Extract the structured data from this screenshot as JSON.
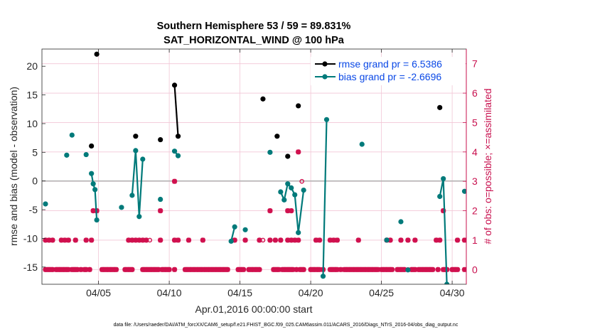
{
  "chart_data": {
    "type": "line",
    "title": "Southern Hemisphere 53 / 59 = 89.831%",
    "subtitle": "SAT_HORIZONTAL_WIND @ 100 hPa",
    "xlabel": "Apr.01,2016 00:00:00 start",
    "ylabel": "rmse and bias (model - observation)",
    "y2label": "# of obs: o=possible; ×=assimilated",
    "footer": "data file: /Users/raeder/DAI/ATM_forcXX/CAM6_setup/f.e21.FHIST_BGC.f09_025.CAM6assim.011/ACARS_2016/Diags_NTrS_2016-04/obs_diag_output.nc",
    "xlim": [
      1.0,
      31.0
    ],
    "ylim": [
      -18,
      23
    ],
    "y2lim": [
      -0.5,
      7.5
    ],
    "xticks": [
      5,
      10,
      15,
      20,
      25,
      30
    ],
    "xtick_labels": [
      "04/05",
      "04/10",
      "04/15",
      "04/20",
      "04/25",
      "04/30"
    ],
    "yticks": [
      -15,
      -10,
      -5,
      0,
      5,
      10,
      15,
      20
    ],
    "y2ticks": [
      0,
      1,
      2,
      3,
      4,
      5,
      6,
      7
    ],
    "grid": true,
    "legend_position": "top-right",
    "colors": {
      "rmse": "#000000",
      "bias": "#007a7a",
      "obs": "#d0104e",
      "zero": "#b4b4b4",
      "grid": "#f2c6d6"
    },
    "series": [
      {
        "name": "rmse grand pr = 6.5386",
        "points": [
          [
            4.5,
            6.1
          ],
          [
            4.875,
            22.1
          ],
          [
            7.625,
            7.8
          ],
          [
            9.375,
            7.2
          ],
          [
            10.375,
            16.7
          ],
          [
            10.625,
            7.8
          ],
          [
            16.625,
            14.3
          ],
          [
            17.625,
            7.8
          ],
          [
            18.375,
            4.3
          ],
          [
            19.125,
            13.1
          ],
          [
            29.125,
            12.8
          ]
        ],
        "connected": [
          [
            [
              10.375,
              16.7
            ],
            [
              10.625,
              7.8
            ]
          ]
        ]
      },
      {
        "name": "bias grand pr = -2.6696",
        "points": [
          [
            1.25,
            -4.0
          ],
          [
            2.75,
            4.5
          ],
          [
            3.125,
            8.0
          ],
          [
            4.125,
            4.6
          ],
          [
            4.5,
            1.3
          ],
          [
            4.625,
            -0.5
          ],
          [
            4.75,
            -1.5
          ],
          [
            4.875,
            -6.8
          ],
          [
            6.625,
            -4.6
          ],
          [
            7.375,
            -2.5
          ],
          [
            7.625,
            5.3
          ],
          [
            7.875,
            -6.2
          ],
          [
            8.125,
            3.8
          ],
          [
            9.375,
            -3.2
          ],
          [
            10.375,
            5.2
          ],
          [
            10.625,
            4.4
          ],
          [
            14.375,
            -10.5
          ],
          [
            14.625,
            -8.0
          ],
          [
            15.375,
            -8.5
          ],
          [
            17.125,
            5.0
          ],
          [
            17.875,
            -1.9
          ],
          [
            18.125,
            -3.3
          ],
          [
            18.375,
            -0.5
          ],
          [
            18.625,
            -1.2
          ],
          [
            18.875,
            -2.4
          ],
          [
            19.125,
            -9.0
          ],
          [
            19.5,
            -1.6
          ],
          [
            20.875,
            -16.6
          ],
          [
            21.125,
            10.7
          ],
          [
            23.625,
            6.4
          ],
          [
            25.375,
            -10.3
          ],
          [
            26.375,
            -7.1
          ],
          [
            26.875,
            -15.5
          ],
          [
            29.125,
            -2.7
          ],
          [
            29.375,
            0.4
          ],
          [
            29.625,
            -18.0
          ],
          [
            30.875,
            -1.8
          ]
        ],
        "connected": [
          [
            [
              4.5,
              1.3
            ],
            [
              4.625,
              -0.5
            ],
            [
              4.75,
              -1.5
            ],
            [
              4.875,
              -6.8
            ]
          ],
          [
            [
              7.375,
              -2.5
            ],
            [
              7.625,
              5.3
            ],
            [
              7.875,
              -6.2
            ],
            [
              8.125,
              3.8
            ]
          ],
          [
            [
              10.375,
              5.2
            ],
            [
              10.625,
              4.4
            ]
          ],
          [
            [
              14.375,
              -10.5
            ],
            [
              14.625,
              -8.0
            ]
          ],
          [
            [
              17.875,
              -1.9
            ],
            [
              18.125,
              -3.3
            ],
            [
              18.375,
              -0.5
            ],
            [
              18.625,
              -1.2
            ],
            [
              18.875,
              -2.4
            ],
            [
              19.125,
              -9.0
            ],
            [
              19.5,
              -1.6
            ]
          ],
          [
            [
              20.875,
              -16.6
            ],
            [
              21.125,
              10.7
            ]
          ],
          [
            [
              29.125,
              -2.7
            ],
            [
              29.375,
              0.4
            ],
            [
              29.625,
              -18.0
            ]
          ]
        ]
      }
    ],
    "obs_possible_open": [
      [
        8.625,
        1
      ],
      [
        16.625,
        1
      ],
      [
        19.375,
        3
      ],
      [
        26.875,
        0
      ]
    ],
    "obs_assimilated": [
      [
        [
          1.25,
          0
        ],
        [
          30.875,
          0
        ],
        0.125,
        [
          1.25,
          1.375,
          1.5,
          1.625,
          1.75,
          2.0,
          2.125,
          2.25,
          2.375,
          2.5,
          2.625,
          2.75,
          2.875,
          3.125,
          3.25,
          3.375,
          3.5,
          3.75,
          4.0,
          4.125,
          4.375,
          5.25,
          5.375,
          5.5,
          5.625,
          5.75,
          5.875,
          6.0,
          6.125,
          6.25,
          6.875,
          7.0,
          7.125,
          7.25,
          7.375,
          8.125,
          8.25,
          8.375,
          8.5,
          8.625,
          8.75,
          8.875,
          9.0,
          9.125,
          9.25,
          9.5,
          9.625,
          9.75,
          9.875,
          10.0,
          10.375,
          11.125,
          11.25,
          11.375,
          11.5,
          11.625,
          11.75,
          11.875,
          12.0,
          12.125,
          12.25,
          12.375,
          12.5,
          12.625,
          12.75,
          12.875,
          13.0,
          13.125,
          13.25,
          13.375,
          13.5,
          13.625,
          13.75,
          13.875,
          14.0,
          14.125,
          14.875,
          15.0,
          15.125,
          15.25,
          15.625,
          15.75,
          15.875,
          16.0,
          16.125,
          16.25,
          16.375,
          17.375,
          17.5,
          17.625,
          17.75,
          18.0,
          18.125,
          18.25,
          18.375,
          18.5,
          18.625,
          18.75,
          19.0,
          19.25,
          19.375,
          19.5,
          20.0,
          20.125,
          20.25,
          20.375,
          20.5,
          20.625,
          20.875,
          21.375,
          21.5,
          21.625,
          21.75,
          21.875,
          22.125,
          22.375,
          22.5,
          22.625,
          22.75,
          22.875,
          23.0,
          23.125,
          23.25,
          23.375,
          23.5,
          23.625,
          23.75,
          23.875,
          24.0,
          24.125,
          24.25,
          24.375,
          24.5,
          24.625,
          24.75,
          25.0,
          25.125,
          25.25,
          25.375,
          25.5,
          25.625,
          25.75,
          26.125,
          26.25,
          26.375,
          26.5,
          26.625,
          27.125,
          27.25,
          27.375,
          27.625,
          27.75,
          27.875,
          28.0,
          28.125,
          28.25,
          28.375,
          28.5,
          28.625,
          29.0,
          29.375,
          29.5,
          29.625,
          30.0,
          30.125,
          30.25,
          30.375,
          30.875
        ]
      ],
      [
        null,
        null,
        null,
        []
      ]
    ],
    "obs_assimilated_1": [
      1.25,
      1.5,
      1.75,
      2.375,
      2.625,
      2.875,
      3.375,
      4.125,
      4.5,
      7.125,
      7.375,
      7.625,
      7.875,
      8.125,
      8.375,
      9.375,
      10.375,
      10.625,
      11.375,
      12.375,
      14.625,
      15.375,
      16.375,
      17.125,
      17.5,
      17.875,
      18.375,
      18.625,
      18.875,
      19.125,
      20.375,
      20.625,
      21.375,
      21.625,
      21.875,
      23.375,
      25.375,
      25.625,
      26.375,
      26.875,
      27.375,
      28.875,
      29.125,
      30.375,
      30.875
    ],
    "obs_assimilated_2": [
      4.625,
      4.875,
      9.375,
      17.125,
      18.375,
      18.625,
      29.375
    ],
    "obs_assimilated_3": [
      10.375
    ],
    "obs_assimilated_4": [
      19.125
    ],
    "legend_entries": [
      "rmse grand pr = 6.5386",
      "bias grand pr = -2.6696"
    ]
  }
}
